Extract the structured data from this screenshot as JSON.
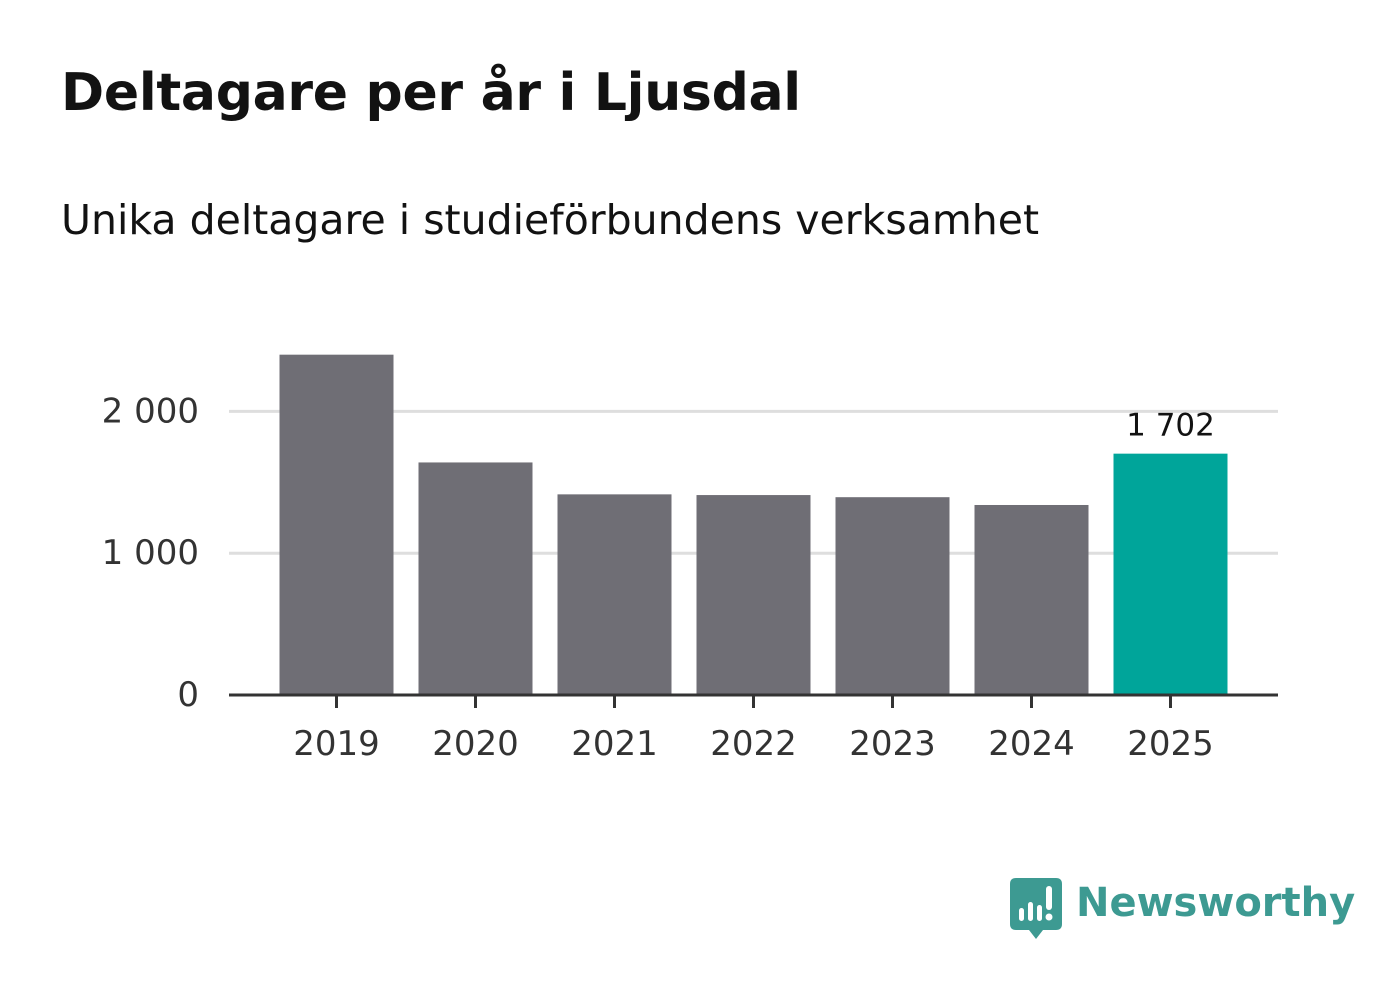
{
  "title": "Deltagare per år i Ljusdal",
  "subtitle": "Unika deltagare i studieförbundens verksamhet",
  "colors": {
    "bar": "#6f6e75",
    "highlight": "#00a59a",
    "grid": "#dedede",
    "axis": "#333333",
    "brand": "#3d9a92"
  },
  "chart_data": {
    "type": "bar",
    "categories": [
      "2019",
      "2020",
      "2021",
      "2022",
      "2023",
      "2024",
      "2025"
    ],
    "values": [
      2400,
      1640,
      1415,
      1410,
      1395,
      1340,
      1702
    ],
    "highlight_index": 6,
    "data_labels": [
      {
        "category": "2025",
        "text": "1 702"
      }
    ],
    "y_ticks": [
      {
        "value": 0,
        "label": "0"
      },
      {
        "value": 1000,
        "label": "1 000"
      },
      {
        "value": 2000,
        "label": "2 000"
      }
    ],
    "ylim": [
      0,
      2400
    ],
    "grid": true,
    "legend": "none",
    "xlabel": "",
    "ylabel": ""
  },
  "brand": {
    "name": "Newsworthy",
    "icon": "newsworthy-logo-icon"
  }
}
